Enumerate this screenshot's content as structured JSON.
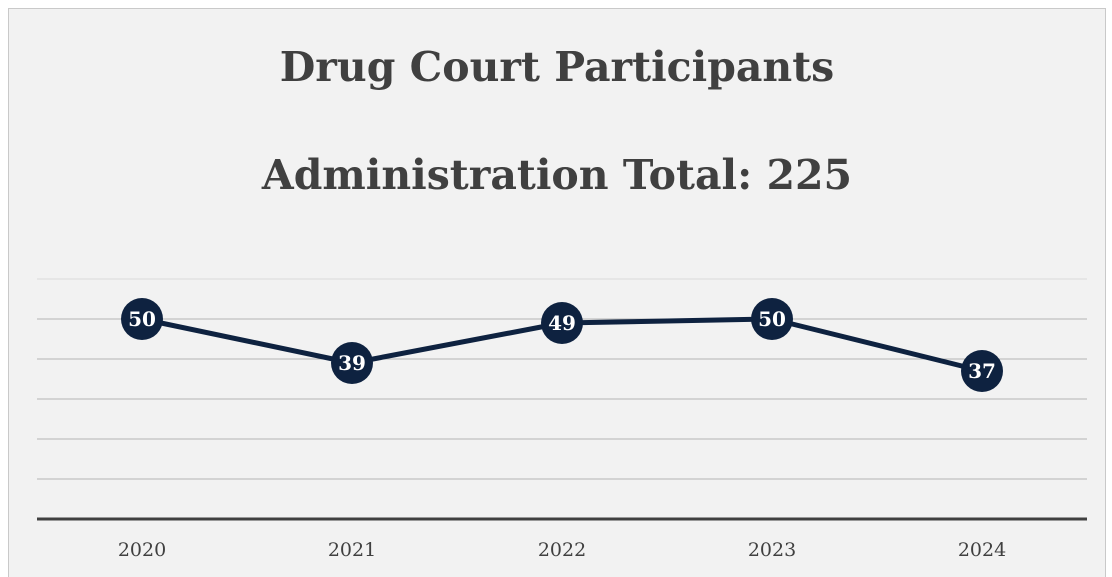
{
  "chart_data": {
    "type": "line",
    "title": "Drug Court Participants",
    "subtitle": "Administration Total: 225",
    "categories": [
      "2020",
      "2021",
      "2022",
      "2023",
      "2024"
    ],
    "values": [
      50,
      39,
      49,
      50,
      37
    ],
    "ylim": [
      0,
      60
    ],
    "grid": true,
    "data_labels": true,
    "colors": {
      "line": "#0e2240",
      "marker": "#0e2240",
      "label_text": "#ffffff",
      "gridline": "#b4b4b4",
      "axis": "#404040",
      "background": "#f2f2f2"
    }
  }
}
